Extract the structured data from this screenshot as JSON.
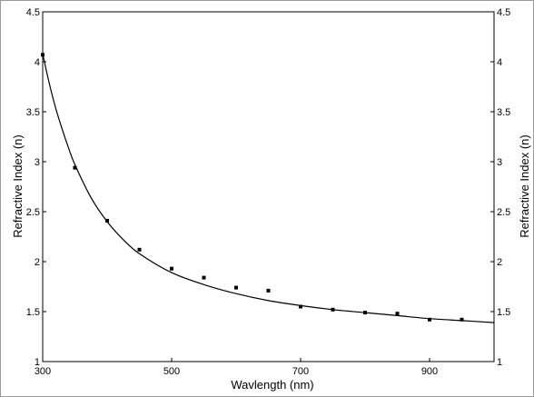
{
  "chart_data": {
    "type": "scatter",
    "xlabel": "Wavlength (nm)",
    "ylabel": "Refractive Index (n)",
    "ylabel_right": "Refractive Index (n)",
    "xlim": [
      300,
      1000
    ],
    "ylim": [
      1,
      4.5
    ],
    "x_ticks": [
      300,
      500,
      700,
      900
    ],
    "y_ticks": [
      1,
      1.5,
      2,
      2.5,
      3,
      3.5,
      4,
      4.5
    ],
    "grid": false,
    "legend": "none",
    "series": [
      {
        "marker": "square",
        "x": [
          300,
          350,
          400,
          450,
          500,
          550,
          600,
          650,
          700,
          750,
          800,
          850,
          900,
          950
        ],
        "values": [
          4.07,
          2.94,
          2.41,
          2.12,
          1.93,
          1.84,
          1.74,
          1.71,
          1.55,
          1.52,
          1.49,
          1.48,
          1.42,
          1.42
        ]
      }
    ],
    "fit_line": {
      "x": [
        300,
        310,
        320,
        330,
        340,
        350,
        375,
        400,
        425,
        450,
        500,
        550,
        600,
        650,
        700,
        750,
        800,
        850,
        900,
        950,
        1000
      ],
      "values": [
        4.08,
        3.79,
        3.54,
        3.33,
        3.14,
        2.97,
        2.64,
        2.4,
        2.22,
        2.08,
        1.89,
        1.77,
        1.68,
        1.61,
        1.56,
        1.52,
        1.49,
        1.46,
        1.43,
        1.41,
        1.39
      ]
    }
  }
}
